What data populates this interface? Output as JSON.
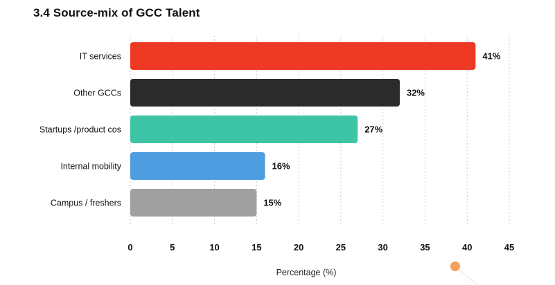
{
  "chart_data": {
    "type": "bar",
    "orientation": "horizontal",
    "title": "3.4 Source-mix of GCC Talent",
    "categories": [
      "IT services",
      "Other GCCs",
      "Startups /product cos",
      "Internal mobility",
      "Campus / freshers"
    ],
    "values": [
      41,
      32,
      27,
      16,
      15
    ],
    "value_labels": [
      "41%",
      "32%",
      "27%",
      "16%",
      "15%"
    ],
    "colors": [
      "#ee3a24",
      "#2b2b2b",
      "#3ec5a5",
      "#4d9de0",
      "#a0a0a0"
    ],
    "xlabel": "Percentage (%)",
    "ylabel": "",
    "xlim": [
      0,
      45
    ],
    "xticks": [
      "0",
      "5",
      "10",
      "15",
      "20",
      "25",
      "30",
      "35",
      "40",
      "45"
    ],
    "grid": "vertical dotted",
    "legend": "none"
  },
  "decoration": {
    "dot_color": "#f5a15a"
  }
}
